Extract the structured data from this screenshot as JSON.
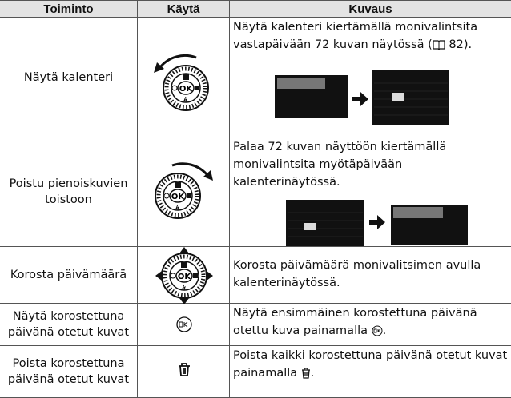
{
  "table": {
    "header": [
      "Toiminto",
      "Käytä",
      "Kuvaus"
    ],
    "rows": [
      {
        "action": "Näytä kalenteri",
        "description": [
          "Näytä kalenteri kiertämällä monivalintsita vastapäivään 72 kuvan näytössä (",
          "82)."
        ]
      },
      {
        "action": "Poistu pienoiskuvien toistoon",
        "description": [
          "Palaa 72 kuvan näyttöön kiertämällä monivalintsita myötäpäivään kalenterinäytössä."
        ]
      },
      {
        "action": "Korosta päivämäärä",
        "description": [
          "Korosta päivämäärä monivalitsimen avulla kalenterinäytössä."
        ]
      },
      {
        "action": "Näytä korostettuna päivänä otetut kuvat",
        "description": [
          "Näytä ensimmäinen korostettuna päivänä otettu kuva painamalla ",
          "."
        ]
      },
      {
        "action": "Poista korostettuna päivänä otetut kuvat",
        "description": [
          "Poista kaikki korostettuna päivänä otetut kuvat painamalla ",
          "."
        ]
      }
    ]
  }
}
